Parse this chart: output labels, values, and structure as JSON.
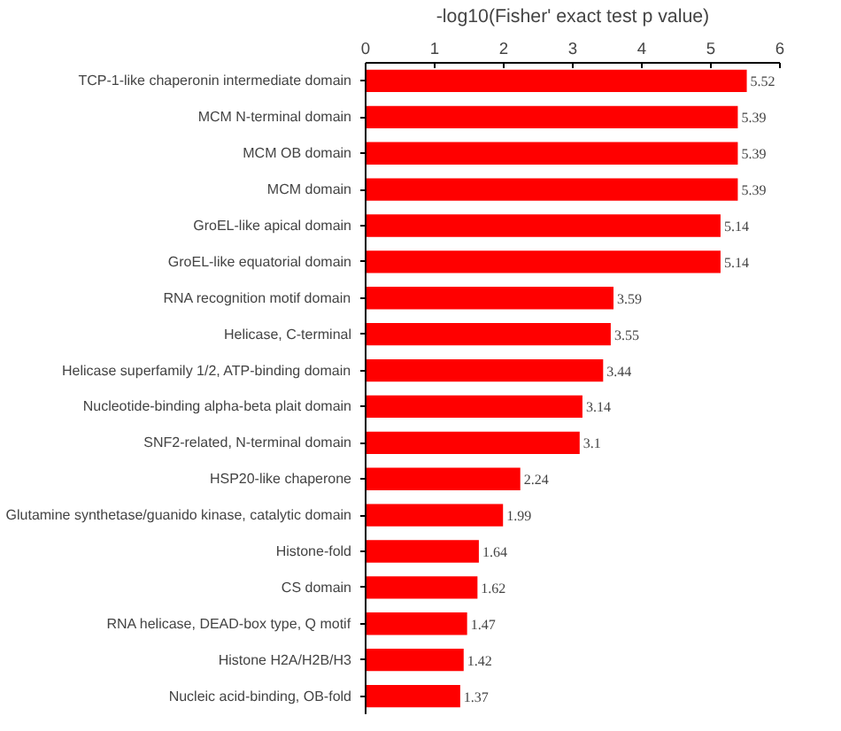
{
  "chart_data": {
    "type": "bar",
    "orientation": "horizontal",
    "xlabel": "-log10(Fisher' exact test p value)",
    "categories": [
      "TCP-1-like chaperonin intermediate domain",
      "MCM N-terminal domain",
      "MCM OB domain",
      "MCM domain",
      "GroEL-like apical domain",
      "GroEL-like equatorial domain",
      "RNA recognition motif domain",
      "Helicase, C-terminal",
      "Helicase superfamily 1/2, ATP-binding domain",
      "Nucleotide-binding alpha-beta plait domain",
      "SNF2-related, N-terminal domain",
      "HSP20-like chaperone",
      "Glutamine synthetase/guanido kinase, catalytic domain",
      "Histone-fold",
      "CS domain",
      "RNA helicase, DEAD-box type, Q motif",
      "Histone H2A/H2B/H3",
      "Nucleic acid-binding, OB-fold"
    ],
    "values": [
      5.52,
      5.39,
      5.39,
      5.39,
      5.14,
      5.14,
      3.59,
      3.55,
      3.44,
      3.14,
      3.1,
      2.24,
      1.99,
      1.64,
      1.62,
      1.47,
      1.42,
      1.37
    ],
    "color": "#ff0000",
    "xlim": [
      0,
      6
    ],
    "xticks": [
      0,
      1,
      2,
      3,
      4,
      5,
      6
    ],
    "data_labels": true,
    "grid": false
  }
}
